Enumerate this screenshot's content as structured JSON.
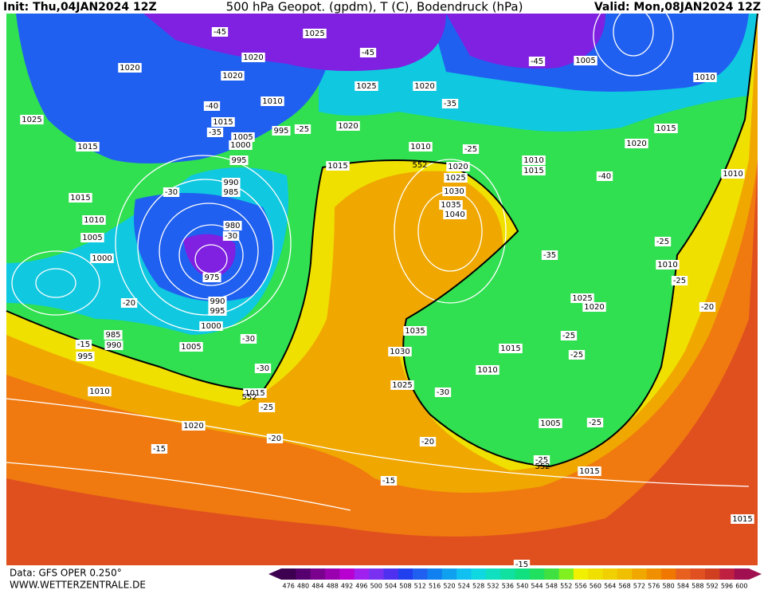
{
  "header": {
    "init": "Init: Thu,04JAN2024 12Z",
    "title": "500 hPa Geopot. (gpdm), T (C), Bodendruck (hPa)",
    "valid": "Valid: Mon,08JAN2024 12Z"
  },
  "map": {
    "pressure_labels": [
      1025,
      1020,
      1020,
      1020,
      1025,
      1020,
      1005,
      1010,
      1010,
      1025,
      1015,
      995,
      1020,
      1005,
      1000,
      1015,
      1010,
      1015,
      1020,
      995,
      1010,
      1015,
      1015,
      1020,
      1025,
      1030,
      990,
      985,
      1035,
      1040,
      1010,
      1015,
      1010,
      1005,
      980,
      1000,
      975,
      1010,
      990,
      995,
      1025,
      1020,
      1000,
      1035,
      985,
      990,
      1005,
      995,
      1030,
      1015,
      1010,
      1025,
      1015,
      1010,
      1005,
      1020,
      1015,
      1015
    ],
    "temperature_labels": [
      -45,
      -45,
      -45,
      -40,
      -35,
      -25,
      -35,
      -25,
      -40,
      -30,
      -30,
      -35,
      -25,
      -25,
      -20,
      -20,
      -15,
      -30,
      -25,
      -25,
      -30,
      -30,
      -25,
      -20,
      -25,
      -20,
      -15,
      -15,
      -25,
      -15
    ],
    "height_labels": [
      552,
      552,
      552
    ]
  },
  "footer": {
    "data": "Data: GFS OPER 0.250°",
    "site": "WWW.WETTERZENTRALE.DE"
  },
  "legend": {
    "values": [
      476,
      480,
      484,
      488,
      492,
      496,
      500,
      504,
      508,
      512,
      516,
      520,
      524,
      528,
      532,
      536,
      540,
      544,
      548,
      552,
      556,
      560,
      564,
      568,
      572,
      576,
      580,
      584,
      588,
      592,
      596,
      600
    ],
    "colors": [
      "#3d0050",
      "#55006e",
      "#7a008e",
      "#9a00b0",
      "#b800d0",
      "#a020f0",
      "#7a30f0",
      "#5030f0",
      "#2040f0",
      "#2060f0",
      "#1080f0",
      "#10a0f0",
      "#10c0f0",
      "#10d8e0",
      "#10e0c0",
      "#10e0a0",
      "#10e080",
      "#20e060",
      "#40e040",
      "#80f020",
      "#f0f000",
      "#f0e000",
      "#f0d000",
      "#f0c000",
      "#f0a800",
      "#f09000",
      "#f07800",
      "#e86020",
      "#e05020",
      "#d04020",
      "#c02040",
      "#a01050"
    ]
  }
}
